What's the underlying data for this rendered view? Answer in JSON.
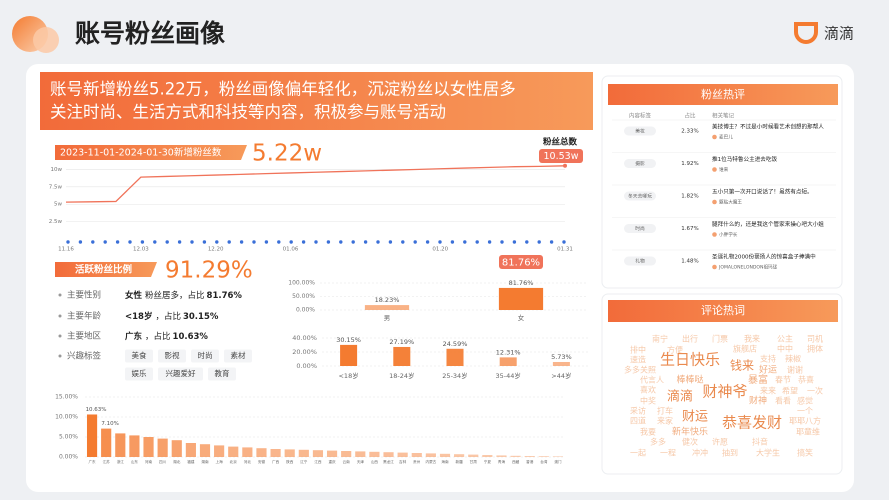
{
  "header": {
    "title": "账号粉丝画像",
    "brand": "滴滴"
  },
  "summary": {
    "lines": [
      "账号新增粉丝5.22万，粉丝画像偏年轻化，沉淀粉丝以女性居多",
      "关注时尚、生活方式和科技等内容，积极参与账号活动"
    ]
  },
  "growth": {
    "label": "2023-11-01-2024-01-30新增粉丝数",
    "value": "5.22w",
    "total_title": "粉丝总数",
    "total_value": "10.53w"
  },
  "active": {
    "label": "活跃粉丝比例",
    "value": "91.29%"
  },
  "profile": {
    "rows": [
      {
        "label": "主要性别",
        "main": "女性",
        "detail": "粉丝居多，占比",
        "percent": "81.76%"
      },
      {
        "label": "主要年龄",
        "main": "<18岁",
        "detail": "，占比",
        "percent": "30.15%"
      },
      {
        "label": "主要地区",
        "main": "广东",
        "detail": "，占比",
        "percent": "10.63%"
      }
    ],
    "tags_label": "兴趣标签",
    "tags": [
      "美食",
      "影视",
      "时尚",
      "素材",
      "娱乐",
      "兴趣爱好",
      "教育"
    ]
  },
  "chart_data": [
    {
      "type": "line",
      "categories": [
        "11.16",
        null,
        null,
        "12.03",
        null,
        null,
        "12.20",
        null,
        null,
        "01.06",
        null,
        null,
        null,
        null,
        null,
        "01.20",
        null,
        null,
        null,
        null,
        "01.31"
      ],
      "series": [
        {
          "name": "粉丝总数",
          "color": "#f0735a",
          "values": [
            5.3,
            5.35,
            5.4,
            8.9,
            9.0,
            9.1,
            9.2,
            9.3,
            9.4,
            9.5,
            9.6,
            9.7,
            9.8,
            9.9,
            10.0,
            10.1,
            10.2,
            10.3,
            10.4,
            10.45,
            10.53
          ]
        }
      ],
      "ylim": [
        0,
        10.5
      ],
      "yticks": [
        {
          "value": 2.5,
          "label": "2.5w"
        },
        {
          "value": 5,
          "label": "5w"
        },
        {
          "value": 7.5,
          "label": "7.5w"
        },
        {
          "value": 10,
          "label": "10w"
        }
      ],
      "grid": true
    },
    {
      "type": "bar",
      "categories": [
        "男",
        "女"
      ],
      "values": [
        18.23,
        81.76
      ],
      "value_labels": [
        "18.23%",
        "81.76%"
      ],
      "color": "#f47b30",
      "ylim": [
        0,
        100
      ],
      "yticks": [
        {
          "value": 0,
          "label": "0.00%"
        },
        {
          "value": 50,
          "label": "50.00%"
        },
        {
          "value": 100,
          "label": "100.00%"
        }
      ],
      "grid": true,
      "highlight": 1
    },
    {
      "type": "bar",
      "categories": [
        "<18岁",
        "18-24岁",
        "25-34岁",
        "35-44岁",
        ">44岁"
      ],
      "values": [
        30.15,
        27.19,
        24.59,
        12.31,
        5.73
      ],
      "value_labels": [
        "30.15%",
        "27.19%",
        "24.59%",
        "12.31%",
        "5.73%"
      ],
      "color": "#f47b30",
      "ylim": [
        0,
        40
      ],
      "yticks": [
        {
          "value": 0,
          "label": "0.00%"
        },
        {
          "value": 20,
          "label": "20.00%"
        },
        {
          "value": 40,
          "label": "40.00%"
        }
      ],
      "grid": true
    },
    {
      "type": "bar",
      "categories": [
        "广东",
        "江苏",
        "浙江",
        "山东",
        "河南",
        "四川",
        "湖北",
        "福建",
        "湖南",
        "上海",
        "北京",
        "河北",
        "安徽",
        "广西",
        "陕西",
        "辽宁",
        "江西",
        "重庆",
        "云南",
        "天津",
        "山西",
        "黑龙江",
        "吉林",
        "贵州",
        "内蒙古",
        "海南",
        "新疆",
        "甘肃",
        "宁夏",
        "青海",
        "西藏",
        "香港",
        "台湾",
        "澳门"
      ],
      "values": [
        10.63,
        7.1,
        5.9,
        5.4,
        5.0,
        4.6,
        4.2,
        3.5,
        3.2,
        2.9,
        2.6,
        2.4,
        2.2,
        2.0,
        1.9,
        1.8,
        1.7,
        1.6,
        1.5,
        1.4,
        1.3,
        1.2,
        1.1,
        1.0,
        0.9,
        0.8,
        0.7,
        0.6,
        0.5,
        0.4,
        0.3,
        0.25,
        0.2,
        0.15
      ],
      "value_labels": [
        "10.63%",
        "7.10%",
        null,
        null,
        null,
        null,
        null,
        null,
        null,
        null,
        null,
        null,
        null,
        null,
        null,
        null,
        null,
        null,
        null,
        null,
        null,
        null,
        null,
        null,
        null,
        null,
        null,
        null,
        null,
        null,
        null,
        null,
        null,
        null
      ],
      "color": "#f47b30",
      "ylim": [
        0,
        15
      ],
      "yticks": [
        {
          "value": 0,
          "label": "0.00%"
        },
        {
          "value": 5,
          "label": "5.00%"
        },
        {
          "value": 10,
          "label": "10.00%"
        },
        {
          "value": 15,
          "label": "15.00%"
        }
      ],
      "grid": true
    }
  ],
  "fan_comments": {
    "title": "粉丝热评",
    "headers": [
      "内容标签",
      "占比",
      "相关笔记"
    ],
    "rows": [
      {
        "tag": "美妆",
        "share": "2.33%",
        "note": "美技博主？不过是小时候看艺术创想的那帮人",
        "author": "麦巴儿"
      },
      {
        "tag": "摄影",
        "share": "1.92%",
        "note": "推1位马特鲁公主进去吃饭",
        "author": "谁来"
      },
      {
        "tag": "冬天去哪玩",
        "share": "1.82%",
        "note": "五小只第一次开口说话了！虽然有点短。",
        "author": "躯贴大魔王"
      },
      {
        "tag": "时尚",
        "share": "1.67%",
        "note": "腿拜什么的，还是我这个管家来操心吧大小姐",
        "author": "小胖学长"
      },
      {
        "tag": "礼物",
        "share": "1.48%",
        "note": "圣诞礼物2000份褒扬人的惊喜盒子捧满中",
        "author": "JOMALONELONDON祖玛珑"
      }
    ]
  },
  "hot_words": {
    "title": "评论热词",
    "words": [
      "南宁",
      "出行",
      "门票",
      "我来",
      "公主",
      "司机",
      "排中",
      "方便",
      "旗舰店",
      "中中",
      "拥体",
      "速造",
      "生日快乐",
      "支持",
      "辣椒",
      "多多关照",
      "钱来",
      "好运",
      "谢谢",
      "代言人",
      "棒棒哒",
      "暴富",
      "春节",
      "恭喜",
      "喜欢",
      "财神爷",
      "来来",
      "希望",
      "一次",
      "滴滴",
      "中奖",
      "财神",
      "看看",
      "感觉",
      "采访",
      "打车",
      "一个",
      "四道",
      "来家",
      "财运",
      "恭喜发财",
      "耶耶八方",
      "我要",
      "新年快乐",
      "耶童维",
      "多多",
      "健次",
      "许愿",
      "抖音",
      "一起",
      "一程",
      "冲冲",
      "抽到",
      "大学生",
      "搞笑"
    ]
  }
}
